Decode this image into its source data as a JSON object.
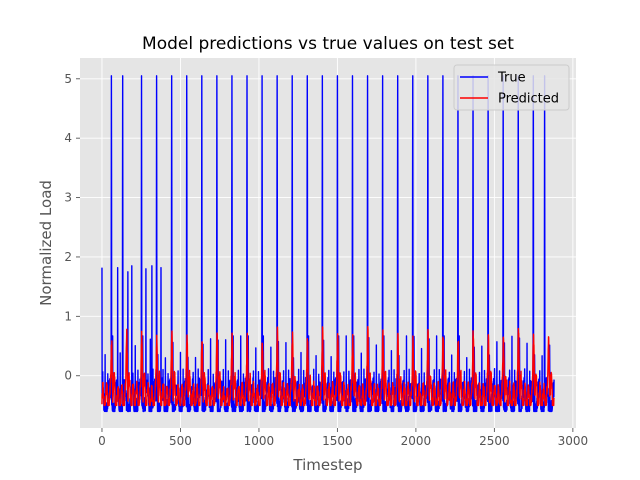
{
  "chart_data": {
    "type": "line",
    "title": "Model predictions vs true values on test set",
    "xlabel": "Timestep",
    "ylabel": "Normalized Load",
    "xlim": [
      -140,
      3020
    ],
    "ylim": [
      -0.88,
      5.35
    ],
    "xticks": [
      0,
      500,
      1000,
      1500,
      2000,
      2500,
      3000
    ],
    "yticks": [
      0,
      1,
      2,
      3,
      4,
      5
    ],
    "grid": true,
    "legend": {
      "position": "top-right"
    },
    "series": [
      {
        "name": "True",
        "color": "#0000ff",
        "x_range": [
          0,
          2880
        ],
        "period": 96,
        "tall_peaks_at": [
          60,
          132,
          252,
          348,
          444,
          540,
          636,
          732,
          828,
          924,
          1020,
          1116,
          1212,
          1308,
          1404,
          1500,
          1596,
          1692,
          1788,
          1884,
          1980,
          2076,
          2172,
          2268,
          2364,
          2460,
          2556,
          2652,
          2748,
          2820
        ],
        "peak_value": 5.05,
        "secondary_peaks": [
          {
            "x": 0,
            "y": 1.82
          },
          {
            "x": 100,
            "y": 1.82
          },
          {
            "x": 165,
            "y": 1.75
          },
          {
            "x": 190,
            "y": 1.85
          },
          {
            "x": 280,
            "y": 1.8
          },
          {
            "x": 318,
            "y": 1.85
          },
          {
            "x": 376,
            "y": 1.82
          }
        ],
        "baseline_range": [
          -0.6,
          0.12
        ]
      },
      {
        "name": "Predicted",
        "color": "#ff0000",
        "x_range": [
          0,
          2880
        ],
        "period": 96,
        "peak_range": [
          0.65,
          0.88
        ],
        "baseline_range": [
          -0.5,
          0.15
        ]
      }
    ]
  }
}
